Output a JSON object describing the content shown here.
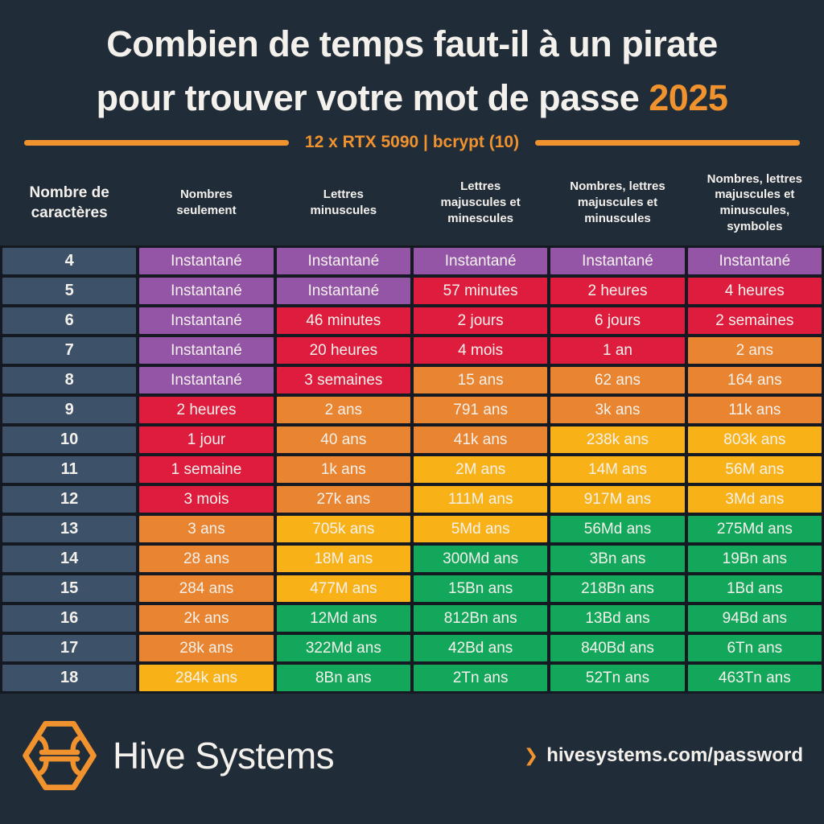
{
  "colors": {
    "background": "#212C39",
    "grid_gap": "#141922",
    "accent_orange": "#F0922E",
    "text_light": "#F4F1EC",
    "char_column": "#3D5269",
    "purple": "#9455A7",
    "red": "#DE1D3E",
    "orange": "#E98430",
    "yellow": "#F8B218",
    "green": "#13A75B"
  },
  "title": {
    "line1": "Combien de temps faut-il à un pirate",
    "line2": "pour trouver votre mot de passe",
    "year": "2025"
  },
  "subtitle": "12 x RTX 5090 | bcrypt (10)",
  "chart_data": {
    "type": "table",
    "title": "Combien de temps faut-il à un pirate pour trouver votre mot de passe 2025",
    "subtitle": "12 x RTX 5090 | bcrypt (10)",
    "columns": [
      "Nombre de\ncaractères",
      "Nombres\nseulement",
      "Lettres\nminuscules",
      "Lettres\nmajuscules et\nminescules",
      "Nombres, lettres\nmajuscules et\nminuscules",
      "Nombres, lettres\nmajuscules et\nminuscules,\nsymboles"
    ],
    "rows": [
      {
        "chars": "4",
        "cells": [
          {
            "text": "Instantané",
            "color": "purple"
          },
          {
            "text": "Instantané",
            "color": "purple"
          },
          {
            "text": "Instantané",
            "color": "purple"
          },
          {
            "text": "Instantané",
            "color": "purple"
          },
          {
            "text": "Instantané",
            "color": "purple"
          }
        ]
      },
      {
        "chars": "5",
        "cells": [
          {
            "text": "Instantané",
            "color": "purple"
          },
          {
            "text": "Instantané",
            "color": "purple"
          },
          {
            "text": "57 minutes",
            "color": "red"
          },
          {
            "text": "2 heures",
            "color": "red"
          },
          {
            "text": "4 heures",
            "color": "red"
          }
        ]
      },
      {
        "chars": "6",
        "cells": [
          {
            "text": "Instantané",
            "color": "purple"
          },
          {
            "text": "46 minutes",
            "color": "red"
          },
          {
            "text": "2 jours",
            "color": "red"
          },
          {
            "text": "6 jours",
            "color": "red"
          },
          {
            "text": "2 semaines",
            "color": "red"
          }
        ]
      },
      {
        "chars": "7",
        "cells": [
          {
            "text": "Instantané",
            "color": "purple"
          },
          {
            "text": "20 heures",
            "color": "red"
          },
          {
            "text": "4 mois",
            "color": "red"
          },
          {
            "text": "1 an",
            "color": "red"
          },
          {
            "text": "2 ans",
            "color": "orange"
          }
        ]
      },
      {
        "chars": "8",
        "cells": [
          {
            "text": "Instantané",
            "color": "purple"
          },
          {
            "text": "3 semaines",
            "color": "red"
          },
          {
            "text": "15 ans",
            "color": "orange"
          },
          {
            "text": "62 ans",
            "color": "orange"
          },
          {
            "text": "164 ans",
            "color": "orange"
          }
        ]
      },
      {
        "chars": "9",
        "cells": [
          {
            "text": "2 heures",
            "color": "red"
          },
          {
            "text": "2 ans",
            "color": "orange"
          },
          {
            "text": "791 ans",
            "color": "orange"
          },
          {
            "text": "3k ans",
            "color": "orange"
          },
          {
            "text": "11k ans",
            "color": "orange"
          }
        ]
      },
      {
        "chars": "10",
        "cells": [
          {
            "text": "1 jour",
            "color": "red"
          },
          {
            "text": "40 ans",
            "color": "orange"
          },
          {
            "text": "41k ans",
            "color": "orange"
          },
          {
            "text": "238k ans",
            "color": "yellow"
          },
          {
            "text": "803k ans",
            "color": "yellow"
          }
        ]
      },
      {
        "chars": "11",
        "cells": [
          {
            "text": "1 semaine",
            "color": "red"
          },
          {
            "text": "1k ans",
            "color": "orange"
          },
          {
            "text": "2M ans",
            "color": "yellow"
          },
          {
            "text": "14M ans",
            "color": "yellow"
          },
          {
            "text": "56M ans",
            "color": "yellow"
          }
        ]
      },
      {
        "chars": "12",
        "cells": [
          {
            "text": "3 mois",
            "color": "red"
          },
          {
            "text": "27k ans",
            "color": "orange"
          },
          {
            "text": "111M ans",
            "color": "yellow"
          },
          {
            "text": "917M ans",
            "color": "yellow"
          },
          {
            "text": "3Md ans",
            "color": "yellow"
          }
        ]
      },
      {
        "chars": "13",
        "cells": [
          {
            "text": "3 ans",
            "color": "orange"
          },
          {
            "text": "705k ans",
            "color": "yellow"
          },
          {
            "text": "5Md ans",
            "color": "yellow"
          },
          {
            "text": "56Md ans",
            "color": "green"
          },
          {
            "text": "275Md ans",
            "color": "green"
          }
        ]
      },
      {
        "chars": "14",
        "cells": [
          {
            "text": "28 ans",
            "color": "orange"
          },
          {
            "text": "18M ans",
            "color": "yellow"
          },
          {
            "text": "300Md ans",
            "color": "green"
          },
          {
            "text": "3Bn ans",
            "color": "green"
          },
          {
            "text": "19Bn ans",
            "color": "green"
          }
        ]
      },
      {
        "chars": "15",
        "cells": [
          {
            "text": "284 ans",
            "color": "orange"
          },
          {
            "text": "477M ans",
            "color": "yellow"
          },
          {
            "text": "15Bn ans",
            "color": "green"
          },
          {
            "text": "218Bn ans",
            "color": "green"
          },
          {
            "text": "1Bd ans",
            "color": "green"
          }
        ]
      },
      {
        "chars": "16",
        "cells": [
          {
            "text": "2k ans",
            "color": "orange"
          },
          {
            "text": "12Md ans",
            "color": "green"
          },
          {
            "text": "812Bn ans",
            "color": "green"
          },
          {
            "text": "13Bd ans",
            "color": "green"
          },
          {
            "text": "94Bd ans",
            "color": "green"
          }
        ]
      },
      {
        "chars": "17",
        "cells": [
          {
            "text": "28k ans",
            "color": "orange"
          },
          {
            "text": "322Md ans",
            "color": "green"
          },
          {
            "text": "42Bd ans",
            "color": "green"
          },
          {
            "text": "840Bd ans",
            "color": "green"
          },
          {
            "text": "6Tn ans",
            "color": "green"
          }
        ]
      },
      {
        "chars": "18",
        "cells": [
          {
            "text": "284k ans",
            "color": "yellow"
          },
          {
            "text": "8Bn ans",
            "color": "green"
          },
          {
            "text": "2Tn ans",
            "color": "green"
          },
          {
            "text": "52Tn ans",
            "color": "green"
          },
          {
            "text": "463Tn ans",
            "color": "green"
          }
        ]
      }
    ]
  },
  "footer": {
    "brand": "Hive Systems",
    "chevron": "❯",
    "link": "hivesystems.com/password"
  }
}
